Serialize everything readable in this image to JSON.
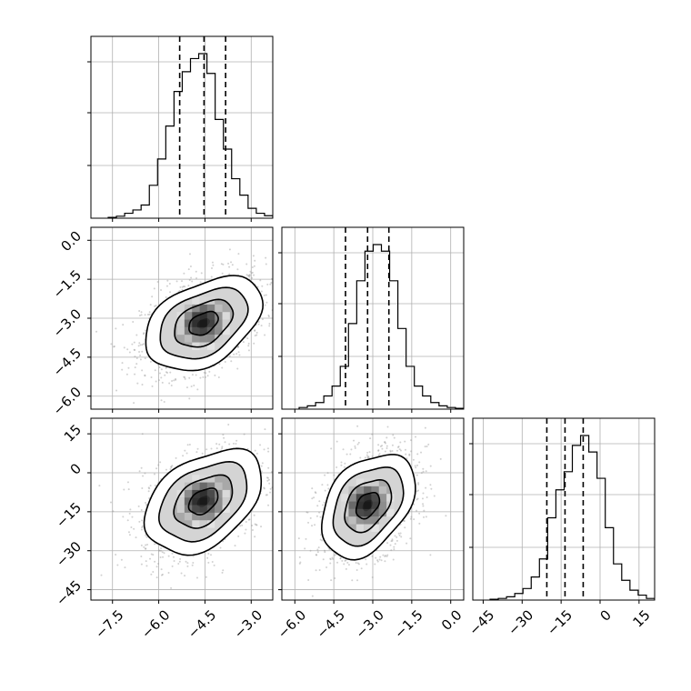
{
  "chart_data": {
    "type": "corner",
    "title": "",
    "parameters": [
      {
        "name": "",
        "range": [
          -8.2,
          -2.3
        ],
        "ticks": [
          -7.5,
          -6.0,
          -4.5,
          -3.0
        ],
        "tick_labels": [
          "−7.5",
          "−6.0",
          "−4.5",
          "−3.0"
        ],
        "quantiles": [
          -5.32,
          -4.53,
          -3.83
        ],
        "histogram": [
          0.005,
          0.012,
          0.03,
          0.05,
          0.08,
          0.2,
          0.36,
          0.56,
          0.77,
          0.89,
          0.97,
          1.0,
          0.88,
          0.6,
          0.42,
          0.24,
          0.14,
          0.06,
          0.03,
          0.015
        ],
        "grid_values": [
          -7.5,
          -6.0,
          -4.5,
          -3.0
        ]
      },
      {
        "name": "",
        "range": [
          -6.5,
          0.5
        ],
        "ticks": [
          -6.0,
          -4.5,
          -3.0,
          -1.5,
          0.0
        ],
        "tick_labels": [
          "−6.0",
          "−4.5",
          "−3.0",
          "−1.5",
          "0.0"
        ],
        "quantiles": [
          -4.05,
          -3.2,
          -2.38
        ],
        "histogram": [
          0.01,
          0.02,
          0.04,
          0.08,
          0.14,
          0.26,
          0.52,
          0.78,
          0.96,
          1.0,
          0.96,
          0.78,
          0.49,
          0.26,
          0.14,
          0.08,
          0.04,
          0.02,
          0.01,
          0.005
        ],
        "grid_values": [
          -6.0,
          -4.5,
          -3.0,
          -1.5,
          0.0
        ]
      },
      {
        "name": "",
        "range": [
          -49,
          21
        ],
        "ticks": [
          -45,
          -30,
          -15,
          0,
          15
        ],
        "tick_labels": [
          "−45",
          "−30",
          "−15",
          "0",
          "15"
        ],
        "quantiles": [
          -20.5,
          -13.5,
          -6.5
        ],
        "histogram": [
          0.005,
          0.01,
          0.02,
          0.04,
          0.07,
          0.14,
          0.25,
          0.5,
          0.67,
          0.78,
          0.94,
          1.0,
          0.9,
          0.74,
          0.44,
          0.22,
          0.12,
          0.06,
          0.03,
          0.01
        ],
        "grid_values": [
          -45,
          -30,
          -15,
          0,
          15
        ]
      }
    ],
    "pairs": [
      {
        "x": 0,
        "y": 1,
        "center": [
          -4.55,
          -3.2
        ],
        "sigma": [
          0.95,
          0.9
        ],
        "correlation": 0.4
      },
      {
        "x": 0,
        "y": 2,
        "center": [
          -4.55,
          -11.0
        ],
        "sigma": [
          0.95,
          10.0
        ],
        "correlation": 0.4
      },
      {
        "x": 1,
        "y": 2,
        "center": [
          -3.2,
          -12.5
        ],
        "sigma": [
          0.9,
          10.0
        ],
        "correlation": 0.38
      }
    ],
    "contour_levels_sigma": [
      0.5,
      1.0,
      1.5,
      2.0
    ],
    "grid": true,
    "legend": "none"
  }
}
